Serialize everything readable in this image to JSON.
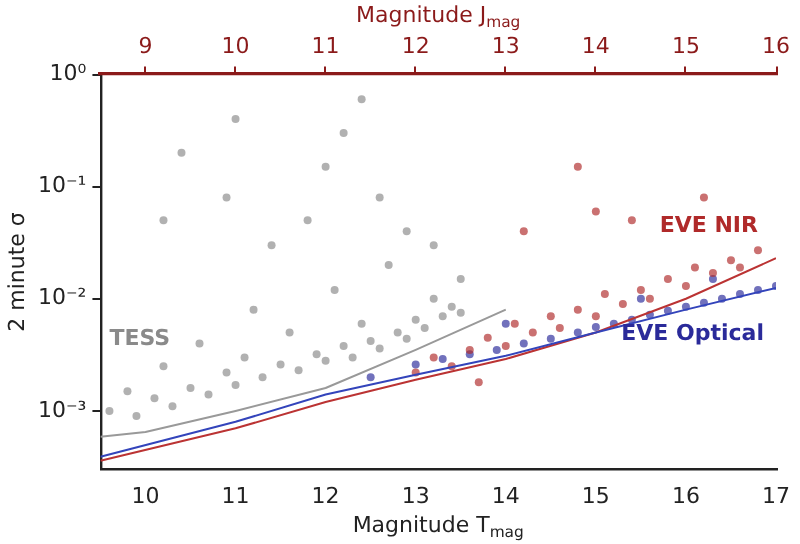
{
  "chart_data": {
    "type": "scatter",
    "xlabel": "Magnitude T$_{mag}$",
    "x2label": "Magnitude J$_{mag}$",
    "ylabel": "2 minute σ",
    "log": "y",
    "grid": false,
    "legend": false,
    "marker": "circle",
    "xlim": [
      9.5,
      17
    ],
    "xticks": [
      10,
      11,
      12,
      13,
      14,
      15,
      16,
      17
    ],
    "x2lim": [
      8.5,
      16
    ],
    "x2ticks": [
      9,
      10,
      11,
      12,
      13,
      14,
      15,
      16
    ],
    "ylim": [
      0.0003,
      1
    ],
    "yticks": [
      {
        "value": 0.001,
        "label": "10⁻³"
      },
      {
        "value": 0.01,
        "label": "10⁻²"
      },
      {
        "value": 0.1,
        "label": "10⁻¹"
      },
      {
        "value": 1,
        "label": "10⁰"
      }
    ],
    "series": [
      {
        "name": "TESS",
        "color": "#8a8a8a",
        "x": [
          9.6,
          9.8,
          9.9,
          10.1,
          10.2,
          10.3,
          10.5,
          10.6,
          10.7,
          10.9,
          11.0,
          11.1,
          11.2,
          11.3,
          11.5,
          11.6,
          11.7,
          11.9,
          12.0,
          12.1,
          12.2,
          12.3,
          12.4,
          12.5,
          12.6,
          12.7,
          12.8,
          12.9,
          13.0,
          13.1,
          13.2,
          13.3,
          13.4,
          13.5,
          13.5,
          11.4,
          11.8,
          12.2,
          12.0,
          12.6,
          11.0,
          10.4,
          10.9,
          12.9,
          12.4,
          13.2,
          10.2
        ],
        "values": [
          0.001,
          0.0015,
          0.0009,
          0.0013,
          0.0025,
          0.0011,
          0.0016,
          0.004,
          0.0014,
          0.0022,
          0.0017,
          0.003,
          0.008,
          0.002,
          0.0026,
          0.005,
          0.0023,
          0.0032,
          0.0028,
          0.012,
          0.0038,
          0.003,
          0.006,
          0.0042,
          0.0036,
          0.02,
          0.005,
          0.0044,
          0.0065,
          0.0055,
          0.01,
          0.007,
          0.0085,
          0.0075,
          0.015,
          0.03,
          0.05,
          0.3,
          0.15,
          0.08,
          0.4,
          0.2,
          0.08,
          0.04,
          0.6,
          0.03,
          0.05
        ]
      },
      {
        "name": "EVE NIR",
        "color": "#b02a2a",
        "x": [
          13.0,
          13.2,
          13.4,
          13.6,
          13.8,
          14.0,
          14.1,
          14.3,
          14.5,
          14.6,
          14.8,
          15.0,
          15.1,
          15.3,
          15.5,
          15.6,
          15.8,
          16.0,
          16.1,
          16.3,
          16.5,
          16.6,
          16.8,
          14.2,
          15.0,
          15.4,
          14.8,
          16.2,
          13.7
        ],
        "values": [
          0.0022,
          0.003,
          0.0025,
          0.0035,
          0.0045,
          0.0038,
          0.006,
          0.005,
          0.007,
          0.0055,
          0.008,
          0.007,
          0.011,
          0.009,
          0.012,
          0.01,
          0.015,
          0.013,
          0.019,
          0.017,
          0.022,
          0.019,
          0.027,
          0.04,
          0.06,
          0.05,
          0.15,
          0.08,
          0.0018
        ]
      },
      {
        "name": "EVE Optical",
        "color": "#2a2a9a",
        "x": [
          13.0,
          13.3,
          13.6,
          13.9,
          14.2,
          14.5,
          14.8,
          15.0,
          15.2,
          15.4,
          15.6,
          15.8,
          16.0,
          16.2,
          16.4,
          16.6,
          16.8,
          17.0,
          14.0,
          15.5,
          16.3,
          12.5
        ],
        "values": [
          0.0026,
          0.0029,
          0.0032,
          0.0035,
          0.004,
          0.0044,
          0.005,
          0.0056,
          0.006,
          0.0065,
          0.0072,
          0.0078,
          0.0085,
          0.0092,
          0.01,
          0.011,
          0.012,
          0.013,
          0.006,
          0.01,
          0.015,
          0.002
        ]
      },
      {
        "type": "line",
        "marker": "none",
        "color": "#999999",
        "x": [
          9.5,
          10,
          11,
          12,
          13,
          14
        ],
        "values": [
          0.00059,
          0.00065,
          0.001,
          0.0016,
          0.0035,
          0.008
        ]
      },
      {
        "type": "line",
        "marker": "none",
        "color": "#3344bb",
        "x": [
          9.5,
          11,
          12,
          13,
          14,
          15,
          16,
          17
        ],
        "values": [
          0.00039,
          0.0008,
          0.0014,
          0.0021,
          0.0031,
          0.005,
          0.008,
          0.0125
        ]
      },
      {
        "type": "line",
        "marker": "none",
        "color": "#bb3333",
        "x": [
          9.5,
          11,
          12,
          13,
          14,
          15,
          16,
          17
        ],
        "values": [
          0.00036,
          0.0007,
          0.0012,
          0.0019,
          0.0029,
          0.005,
          0.01,
          0.023
        ]
      }
    ]
  }
}
